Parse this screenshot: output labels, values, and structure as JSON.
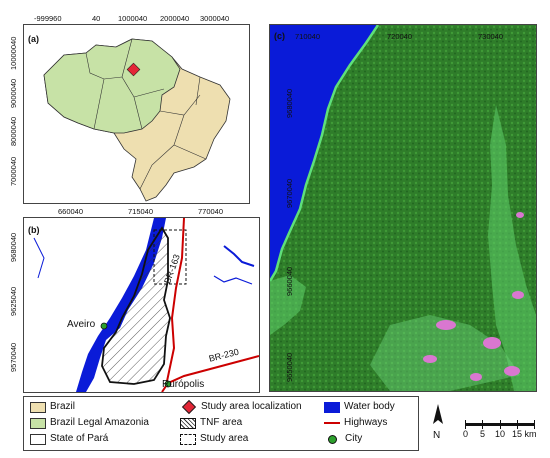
{
  "panel_a": {
    "label": "(a)",
    "x_ticks": [
      "-999960",
      "40",
      "1000040",
      "2000040",
      "3000040"
    ],
    "y_ticks": [
      "10000040",
      "9000040",
      "8000040",
      "7000040"
    ]
  },
  "panel_b": {
    "label": "(b)",
    "x_ticks": [
      "660040",
      "715040",
      "770040"
    ],
    "y_ticks": [
      "9680040",
      "9625040",
      "9570040"
    ],
    "city_labels": [
      "Aveiro",
      "Rurópolis"
    ],
    "highway_labels": [
      "BR-163",
      "BR-230"
    ]
  },
  "panel_c": {
    "label": "(c)",
    "x_ticks": [
      "710040",
      "720040",
      "730040"
    ],
    "y_ticks": [
      "9680040",
      "9670040",
      "9660040",
      "9650040"
    ]
  },
  "legend": {
    "brazil": "Brazil",
    "amazonia": "Brazil Legal Amazonia",
    "para": "State of Pará",
    "study_loc": "Study area localization",
    "tnf": "TNF area",
    "study_area": "Study area",
    "water": "Water body",
    "highways": "Highways",
    "city": "City"
  },
  "scale": {
    "north": "N",
    "labels": [
      "0",
      "5",
      "10",
      "15 km"
    ]
  },
  "colors": {
    "brazil": "#eedfb0",
    "amazonia": "#c7e2a6",
    "water": "#0a1bd8",
    "highway": "#cc0000",
    "marker": "#e32636",
    "city": "#2da02d",
    "forest": "#2f7d2a"
  }
}
